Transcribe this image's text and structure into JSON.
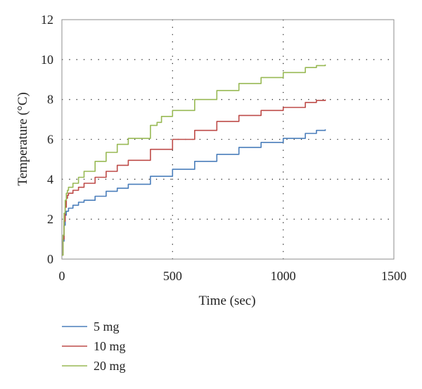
{
  "chart_data": {
    "type": "line",
    "title": "",
    "xlabel": "Time (sec)",
    "ylabel": "Temperature (°C)",
    "xlim": [
      0,
      1500
    ],
    "ylim": [
      0,
      12
    ],
    "xticks": [
      0,
      500,
      1000,
      1500
    ],
    "yticks": [
      0,
      2,
      4,
      6,
      8,
      10,
      12
    ],
    "xtick_labels": [
      "0",
      "500",
      "1000",
      "1500"
    ],
    "ytick_labels": [
      "0",
      "2",
      "4",
      "6",
      "8",
      "10",
      "12"
    ],
    "grid": "dotted",
    "legend_position": "bottom-left",
    "series": [
      {
        "name": "5 mg",
        "color": "#4a7ebb",
        "x": [
          0,
          5,
          10,
          15,
          20,
          30,
          50,
          75,
          100,
          150,
          200,
          250,
          300,
          400,
          500,
          600,
          700,
          800,
          900,
          1000,
          1100,
          1150,
          1190
        ],
        "y": [
          0.2,
          0.9,
          1.7,
          2.2,
          2.4,
          2.55,
          2.7,
          2.85,
          2.95,
          3.15,
          3.4,
          3.55,
          3.75,
          4.15,
          4.5,
          4.9,
          5.25,
          5.6,
          5.85,
          6.05,
          6.3,
          6.45,
          6.5
        ]
      },
      {
        "name": "10 mg",
        "color": "#be4b48",
        "x": [
          0,
          5,
          10,
          15,
          20,
          25,
          30,
          50,
          75,
          100,
          150,
          200,
          250,
          300,
          400,
          500,
          600,
          700,
          800,
          900,
          1000,
          1100,
          1150,
          1190
        ],
        "y": [
          0.2,
          1.0,
          1.9,
          2.6,
          3.05,
          3.2,
          3.3,
          3.45,
          3.6,
          3.8,
          4.1,
          4.4,
          4.7,
          4.95,
          5.5,
          6.0,
          6.45,
          6.9,
          7.2,
          7.45,
          7.6,
          7.85,
          7.95,
          8.0
        ]
      },
      {
        "name": "20 mg",
        "color": "#98b954",
        "x": [
          0,
          5,
          10,
          15,
          20,
          25,
          30,
          50,
          75,
          100,
          150,
          200,
          250,
          300,
          400,
          430,
          450,
          500,
          600,
          700,
          800,
          900,
          1000,
          1100,
          1150,
          1190
        ],
        "y": [
          0.2,
          1.2,
          2.3,
          2.95,
          3.3,
          3.45,
          3.6,
          3.8,
          4.1,
          4.4,
          4.9,
          5.35,
          5.75,
          6.05,
          6.7,
          6.85,
          7.15,
          7.45,
          8.0,
          8.45,
          8.8,
          9.1,
          9.35,
          9.6,
          9.7,
          9.75
        ]
      }
    ]
  }
}
